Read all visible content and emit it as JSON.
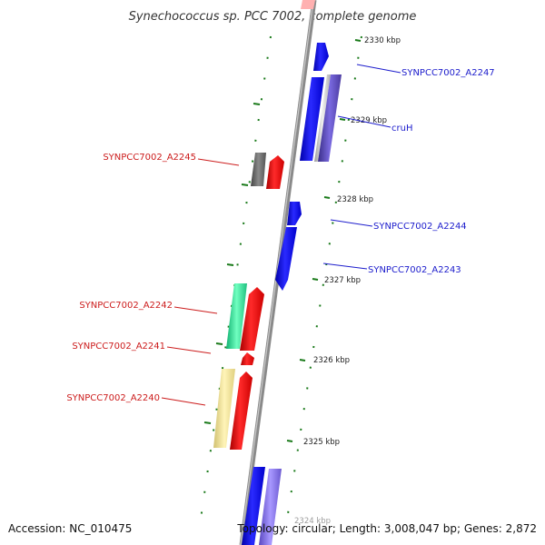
{
  "title": "Synechococcus sp. PCC 7002, complete genome",
  "accession_text": "Accession: NC_010475",
  "summary_text": "Topology: circular; Length: 3,008,047 bp; Genes: 2,872",
  "colors": {
    "forward_gene": "#0000ee",
    "reverse_gene": "#ee0000",
    "backbone": "#888888",
    "tick": "#1a7a1a",
    "forward_label": "#1c1ccc",
    "reverse_label": "#cc1c1c"
  },
  "ticks": [
    {
      "label": "2330 kbp"
    },
    {
      "label": "2329 kbp"
    },
    {
      "label": "2328 kbp"
    },
    {
      "label": "2327 kbp"
    },
    {
      "label": "2326 kbp"
    },
    {
      "label": "2325 kbp"
    },
    {
      "label": "2324 kbp"
    }
  ],
  "forward_gene_labels": [
    {
      "id": "SYNPCC7002_A2247"
    },
    {
      "id": "cruH"
    },
    {
      "id": "SYNPCC7002_A2244"
    },
    {
      "id": "SYNPCC7002_A2243"
    }
  ],
  "reverse_gene_labels": [
    {
      "id": "SYNPCC7002_A2245"
    },
    {
      "id": "SYNPCC7002_A2242"
    },
    {
      "id": "SYNPCC7002_A2241"
    },
    {
      "id": "SYNPCC7002_A2240"
    }
  ]
}
